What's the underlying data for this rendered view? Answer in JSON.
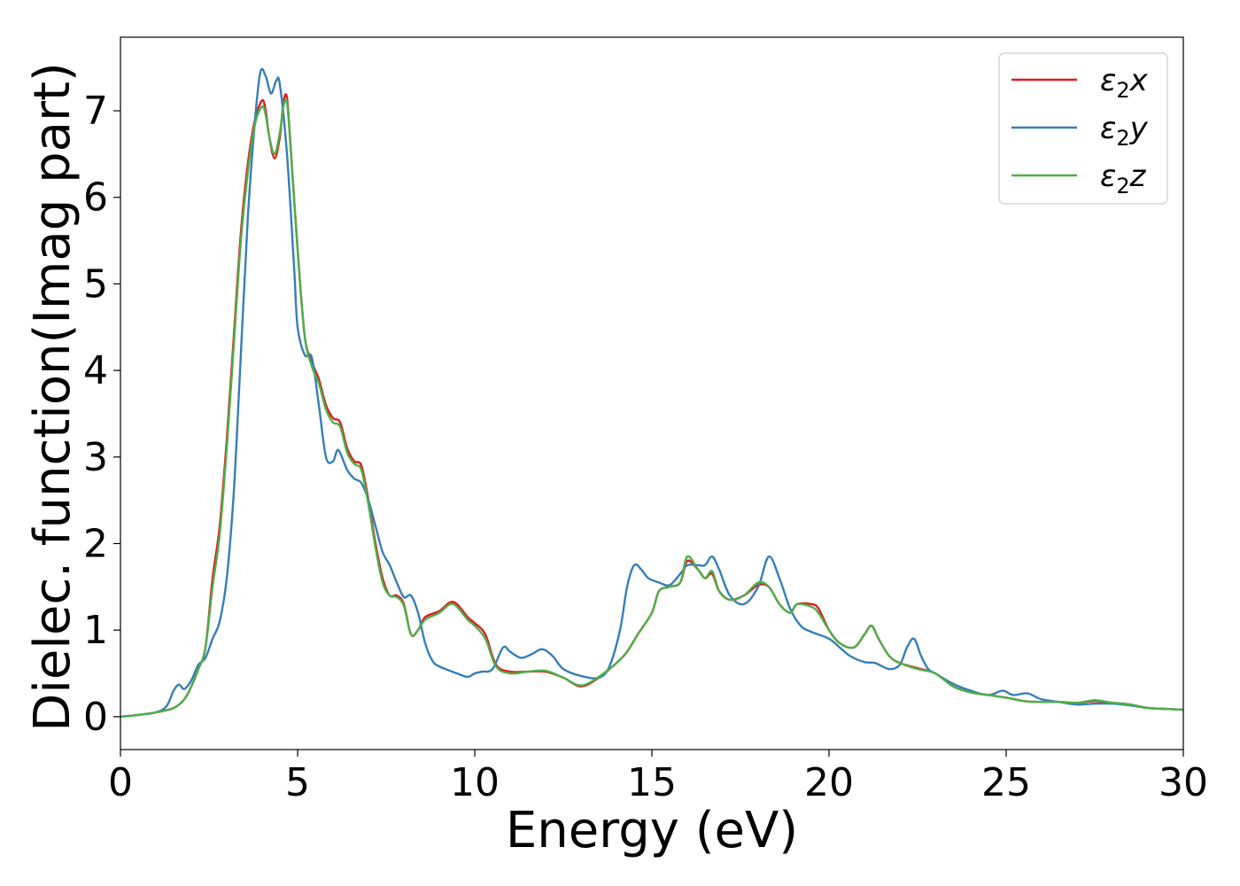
{
  "chart_data": {
    "type": "line",
    "title": "",
    "xlabel": "Energy (eV)",
    "ylabel": "Dielec. function(Imag part)",
    "xlim": [
      0,
      30
    ],
    "ylim": [
      -0.38,
      7.85
    ],
    "xticks": [
      0,
      5,
      10,
      15,
      20,
      25,
      30
    ],
    "yticks": [
      0,
      1,
      2,
      3,
      4,
      5,
      6,
      7
    ],
    "grid": false,
    "legend_position": "top-right",
    "series": [
      {
        "name": "ε₂x",
        "legend": {
          "base": "ε",
          "sub": "2",
          "var": "x"
        },
        "color": "#e41a1c",
        "points": [
          [
            0,
            0
          ],
          [
            0.5,
            0.02
          ],
          [
            1.0,
            0.05
          ],
          [
            1.5,
            0.1
          ],
          [
            1.8,
            0.2
          ],
          [
            2.0,
            0.35
          ],
          [
            2.2,
            0.55
          ],
          [
            2.4,
            0.8
          ],
          [
            2.6,
            1.6
          ],
          [
            2.8,
            2.2
          ],
          [
            3.0,
            3.2
          ],
          [
            3.2,
            4.4
          ],
          [
            3.4,
            5.6
          ],
          [
            3.6,
            6.4
          ],
          [
            3.8,
            6.9
          ],
          [
            4.0,
            7.12
          ],
          [
            4.1,
            7.0
          ],
          [
            4.2,
            6.7
          ],
          [
            4.35,
            6.45
          ],
          [
            4.5,
            6.7
          ],
          [
            4.6,
            7.1
          ],
          [
            4.7,
            7.15
          ],
          [
            4.8,
            6.6
          ],
          [
            5.0,
            5.4
          ],
          [
            5.2,
            4.4
          ],
          [
            5.4,
            4.1
          ],
          [
            5.6,
            3.9
          ],
          [
            5.8,
            3.6
          ],
          [
            6.0,
            3.45
          ],
          [
            6.2,
            3.4
          ],
          [
            6.4,
            3.1
          ],
          [
            6.6,
            2.95
          ],
          [
            6.8,
            2.9
          ],
          [
            7.0,
            2.5
          ],
          [
            7.2,
            2.0
          ],
          [
            7.4,
            1.6
          ],
          [
            7.6,
            1.4
          ],
          [
            7.8,
            1.4
          ],
          [
            8.0,
            1.3
          ],
          [
            8.2,
            0.95
          ],
          [
            8.4,
            1.0
          ],
          [
            8.6,
            1.15
          ],
          [
            9.0,
            1.22
          ],
          [
            9.3,
            1.32
          ],
          [
            9.5,
            1.3
          ],
          [
            9.8,
            1.15
          ],
          [
            10.0,
            1.08
          ],
          [
            10.3,
            0.95
          ],
          [
            10.6,
            0.6
          ],
          [
            11.0,
            0.52
          ],
          [
            11.5,
            0.52
          ],
          [
            12.0,
            0.52
          ],
          [
            12.5,
            0.45
          ],
          [
            13.0,
            0.35
          ],
          [
            13.5,
            0.45
          ],
          [
            14.0,
            0.62
          ],
          [
            14.3,
            0.75
          ],
          [
            14.6,
            0.95
          ],
          [
            15.0,
            1.2
          ],
          [
            15.2,
            1.45
          ],
          [
            15.5,
            1.5
          ],
          [
            15.8,
            1.55
          ],
          [
            16.0,
            1.8
          ],
          [
            16.3,
            1.7
          ],
          [
            16.5,
            1.6
          ],
          [
            16.7,
            1.65
          ],
          [
            16.9,
            1.45
          ],
          [
            17.2,
            1.35
          ],
          [
            17.6,
            1.4
          ],
          [
            18.0,
            1.52
          ],
          [
            18.3,
            1.5
          ],
          [
            18.6,
            1.3
          ],
          [
            18.9,
            1.2
          ],
          [
            19.1,
            1.3
          ],
          [
            19.5,
            1.3
          ],
          [
            19.7,
            1.25
          ],
          [
            20.0,
            1.0
          ],
          [
            20.3,
            0.85
          ],
          [
            20.7,
            0.8
          ],
          [
            21.0,
            0.95
          ],
          [
            21.2,
            1.05
          ],
          [
            21.4,
            0.9
          ],
          [
            21.7,
            0.7
          ],
          [
            22.0,
            0.62
          ],
          [
            22.5,
            0.56
          ],
          [
            23.0,
            0.5
          ],
          [
            23.5,
            0.35
          ],
          [
            24.0,
            0.28
          ],
          [
            24.5,
            0.25
          ],
          [
            25.0,
            0.22
          ],
          [
            25.5,
            0.18
          ],
          [
            26.0,
            0.17
          ],
          [
            26.5,
            0.17
          ],
          [
            27.0,
            0.16
          ],
          [
            27.5,
            0.18
          ],
          [
            28.0,
            0.16
          ],
          [
            28.5,
            0.14
          ],
          [
            29.0,
            0.1
          ],
          [
            29.5,
            0.09
          ],
          [
            30.0,
            0.08
          ]
        ]
      },
      {
        "name": "ε₂y",
        "legend": {
          "base": "ε",
          "sub": "2",
          "var": "y"
        },
        "color": "#377eb8",
        "points": [
          [
            0,
            0
          ],
          [
            0.5,
            0.02
          ],
          [
            1.0,
            0.05
          ],
          [
            1.3,
            0.12
          ],
          [
            1.5,
            0.3
          ],
          [
            1.65,
            0.37
          ],
          [
            1.8,
            0.32
          ],
          [
            2.0,
            0.42
          ],
          [
            2.2,
            0.6
          ],
          [
            2.4,
            0.68
          ],
          [
            2.6,
            0.9
          ],
          [
            2.8,
            1.1
          ],
          [
            3.0,
            1.6
          ],
          [
            3.2,
            2.6
          ],
          [
            3.4,
            4.2
          ],
          [
            3.6,
            5.8
          ],
          [
            3.8,
            6.9
          ],
          [
            3.95,
            7.45
          ],
          [
            4.1,
            7.4
          ],
          [
            4.25,
            7.2
          ],
          [
            4.4,
            7.35
          ],
          [
            4.5,
            7.3
          ],
          [
            4.7,
            6.5
          ],
          [
            4.9,
            5.2
          ],
          [
            5.0,
            4.5
          ],
          [
            5.2,
            4.18
          ],
          [
            5.4,
            4.15
          ],
          [
            5.6,
            3.6
          ],
          [
            5.8,
            3.0
          ],
          [
            6.0,
            2.95
          ],
          [
            6.15,
            3.08
          ],
          [
            6.4,
            2.85
          ],
          [
            6.6,
            2.75
          ],
          [
            6.8,
            2.7
          ],
          [
            7.0,
            2.5
          ],
          [
            7.2,
            2.2
          ],
          [
            7.4,
            1.9
          ],
          [
            7.6,
            1.75
          ],
          [
            7.8,
            1.55
          ],
          [
            8.0,
            1.38
          ],
          [
            8.2,
            1.4
          ],
          [
            8.4,
            1.2
          ],
          [
            8.6,
            0.85
          ],
          [
            8.8,
            0.65
          ],
          [
            9.0,
            0.58
          ],
          [
            9.5,
            0.5
          ],
          [
            9.8,
            0.46
          ],
          [
            10.0,
            0.5
          ],
          [
            10.2,
            0.52
          ],
          [
            10.5,
            0.55
          ],
          [
            10.8,
            0.8
          ],
          [
            11.0,
            0.75
          ],
          [
            11.3,
            0.68
          ],
          [
            11.6,
            0.72
          ],
          [
            11.9,
            0.78
          ],
          [
            12.2,
            0.7
          ],
          [
            12.5,
            0.55
          ],
          [
            13.0,
            0.47
          ],
          [
            13.5,
            0.45
          ],
          [
            13.8,
            0.58
          ],
          [
            14.1,
            1.0
          ],
          [
            14.3,
            1.5
          ],
          [
            14.5,
            1.75
          ],
          [
            14.7,
            1.7
          ],
          [
            14.9,
            1.6
          ],
          [
            15.2,
            1.55
          ],
          [
            15.5,
            1.52
          ],
          [
            15.8,
            1.65
          ],
          [
            16.0,
            1.75
          ],
          [
            16.3,
            1.75
          ],
          [
            16.5,
            1.75
          ],
          [
            16.7,
            1.85
          ],
          [
            16.9,
            1.7
          ],
          [
            17.2,
            1.4
          ],
          [
            17.6,
            1.3
          ],
          [
            18.0,
            1.5
          ],
          [
            18.3,
            1.85
          ],
          [
            18.6,
            1.6
          ],
          [
            18.9,
            1.25
          ],
          [
            19.2,
            1.05
          ],
          [
            19.5,
            0.98
          ],
          [
            20.0,
            0.9
          ],
          [
            20.3,
            0.8
          ],
          [
            20.6,
            0.7
          ],
          [
            21.0,
            0.63
          ],
          [
            21.3,
            0.62
          ],
          [
            21.7,
            0.55
          ],
          [
            22.0,
            0.6
          ],
          [
            22.2,
            0.8
          ],
          [
            22.4,
            0.9
          ],
          [
            22.6,
            0.7
          ],
          [
            22.8,
            0.55
          ],
          [
            23.0,
            0.5
          ],
          [
            23.5,
            0.38
          ],
          [
            24.0,
            0.3
          ],
          [
            24.5,
            0.25
          ],
          [
            24.9,
            0.3
          ],
          [
            25.2,
            0.25
          ],
          [
            25.6,
            0.27
          ],
          [
            26.0,
            0.2
          ],
          [
            26.5,
            0.17
          ],
          [
            27.0,
            0.14
          ],
          [
            27.5,
            0.15
          ],
          [
            28.0,
            0.15
          ],
          [
            28.5,
            0.13
          ],
          [
            29.0,
            0.1
          ],
          [
            29.5,
            0.09
          ],
          [
            30.0,
            0.08
          ]
        ]
      },
      {
        "name": "ε₂z",
        "legend": {
          "base": "ε",
          "sub": "2",
          "var": "z"
        },
        "color": "#4daf4a",
        "points": [
          [
            0,
            0
          ],
          [
            0.5,
            0.02
          ],
          [
            1.0,
            0.05
          ],
          [
            1.5,
            0.1
          ],
          [
            1.8,
            0.2
          ],
          [
            2.0,
            0.35
          ],
          [
            2.2,
            0.55
          ],
          [
            2.4,
            0.8
          ],
          [
            2.6,
            1.5
          ],
          [
            2.8,
            2.1
          ],
          [
            3.0,
            3.1
          ],
          [
            3.2,
            4.3
          ],
          [
            3.4,
            5.5
          ],
          [
            3.6,
            6.3
          ],
          [
            3.8,
            6.85
          ],
          [
            4.0,
            7.05
          ],
          [
            4.1,
            6.95
          ],
          [
            4.2,
            6.7
          ],
          [
            4.35,
            6.5
          ],
          [
            4.5,
            6.75
          ],
          [
            4.6,
            7.05
          ],
          [
            4.7,
            7.1
          ],
          [
            4.8,
            6.6
          ],
          [
            5.0,
            5.4
          ],
          [
            5.2,
            4.4
          ],
          [
            5.4,
            4.05
          ],
          [
            5.6,
            3.85
          ],
          [
            5.8,
            3.55
          ],
          [
            6.0,
            3.4
          ],
          [
            6.2,
            3.35
          ],
          [
            6.4,
            3.05
          ],
          [
            6.6,
            2.92
          ],
          [
            6.8,
            2.85
          ],
          [
            7.0,
            2.45
          ],
          [
            7.2,
            1.95
          ],
          [
            7.4,
            1.55
          ],
          [
            7.6,
            1.4
          ],
          [
            7.8,
            1.38
          ],
          [
            8.0,
            1.28
          ],
          [
            8.2,
            0.95
          ],
          [
            8.4,
            1.0
          ],
          [
            8.6,
            1.12
          ],
          [
            9.0,
            1.2
          ],
          [
            9.3,
            1.3
          ],
          [
            9.5,
            1.27
          ],
          [
            9.8,
            1.12
          ],
          [
            10.0,
            1.05
          ],
          [
            10.3,
            0.9
          ],
          [
            10.6,
            0.58
          ],
          [
            11.0,
            0.5
          ],
          [
            11.5,
            0.52
          ],
          [
            12.0,
            0.53
          ],
          [
            12.5,
            0.45
          ],
          [
            13.0,
            0.36
          ],
          [
            13.5,
            0.46
          ],
          [
            14.0,
            0.62
          ],
          [
            14.3,
            0.75
          ],
          [
            14.6,
            0.95
          ],
          [
            15.0,
            1.2
          ],
          [
            15.2,
            1.45
          ],
          [
            15.5,
            1.5
          ],
          [
            15.8,
            1.55
          ],
          [
            16.0,
            1.85
          ],
          [
            16.3,
            1.7
          ],
          [
            16.5,
            1.6
          ],
          [
            16.7,
            1.68
          ],
          [
            16.9,
            1.45
          ],
          [
            17.2,
            1.35
          ],
          [
            17.6,
            1.4
          ],
          [
            18.0,
            1.55
          ],
          [
            18.3,
            1.5
          ],
          [
            18.6,
            1.3
          ],
          [
            18.9,
            1.2
          ],
          [
            19.1,
            1.3
          ],
          [
            19.5,
            1.27
          ],
          [
            19.7,
            1.2
          ],
          [
            20.0,
            1.0
          ],
          [
            20.3,
            0.85
          ],
          [
            20.7,
            0.8
          ],
          [
            21.0,
            0.95
          ],
          [
            21.2,
            1.05
          ],
          [
            21.4,
            0.9
          ],
          [
            21.7,
            0.7
          ],
          [
            22.0,
            0.62
          ],
          [
            22.5,
            0.55
          ],
          [
            23.0,
            0.5
          ],
          [
            23.5,
            0.35
          ],
          [
            24.0,
            0.28
          ],
          [
            24.5,
            0.25
          ],
          [
            25.0,
            0.22
          ],
          [
            25.5,
            0.18
          ],
          [
            26.0,
            0.17
          ],
          [
            26.5,
            0.17
          ],
          [
            27.0,
            0.16
          ],
          [
            27.5,
            0.19
          ],
          [
            28.0,
            0.16
          ],
          [
            28.5,
            0.14
          ],
          [
            29.0,
            0.1
          ],
          [
            29.5,
            0.09
          ],
          [
            30.0,
            0.08
          ]
        ]
      }
    ]
  }
}
